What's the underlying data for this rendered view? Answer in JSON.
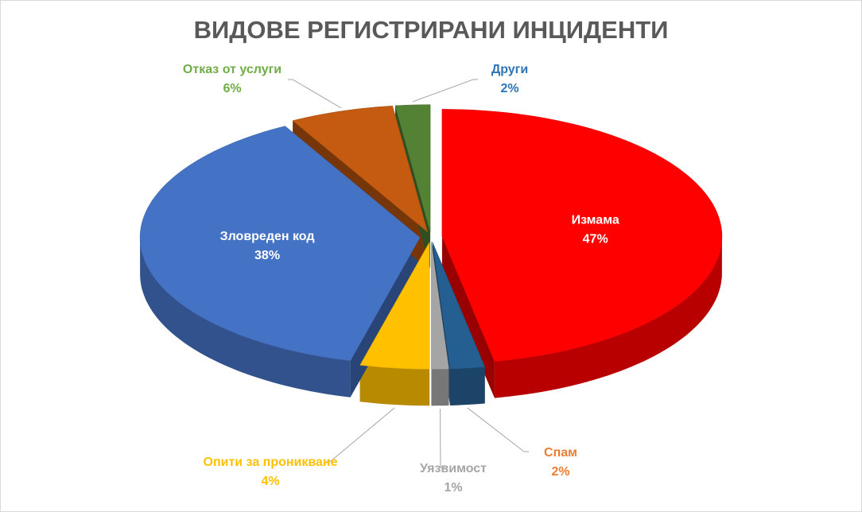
{
  "chart_data": {
    "type": "pie3d",
    "title": "ВИДОВЕ РЕГИСТРИРАНИ ИНЦИДЕНТИ",
    "categories": [
      "Измама",
      "Спам",
      "Уязвимост",
      "Опити за проникване",
      "Зловреден код",
      "Отказ от услуги",
      "Други"
    ],
    "values": [
      47,
      2,
      1,
      4,
      38,
      6,
      2
    ],
    "value_labels": [
      "47%",
      "2%",
      "1%",
      "4%",
      "38%",
      "6%",
      "2%"
    ],
    "colors": [
      "#ff0000",
      "#255e91",
      "#a5a5a5",
      "#ffc000",
      "#4472c4",
      "#c55a11",
      "#548235"
    ],
    "label_colors": [
      "#ffffff",
      "#ed7d31",
      "#a5a5a5",
      "#ffc000",
      "#ffffff",
      "#70ad47",
      "#2e75b6"
    ]
  }
}
